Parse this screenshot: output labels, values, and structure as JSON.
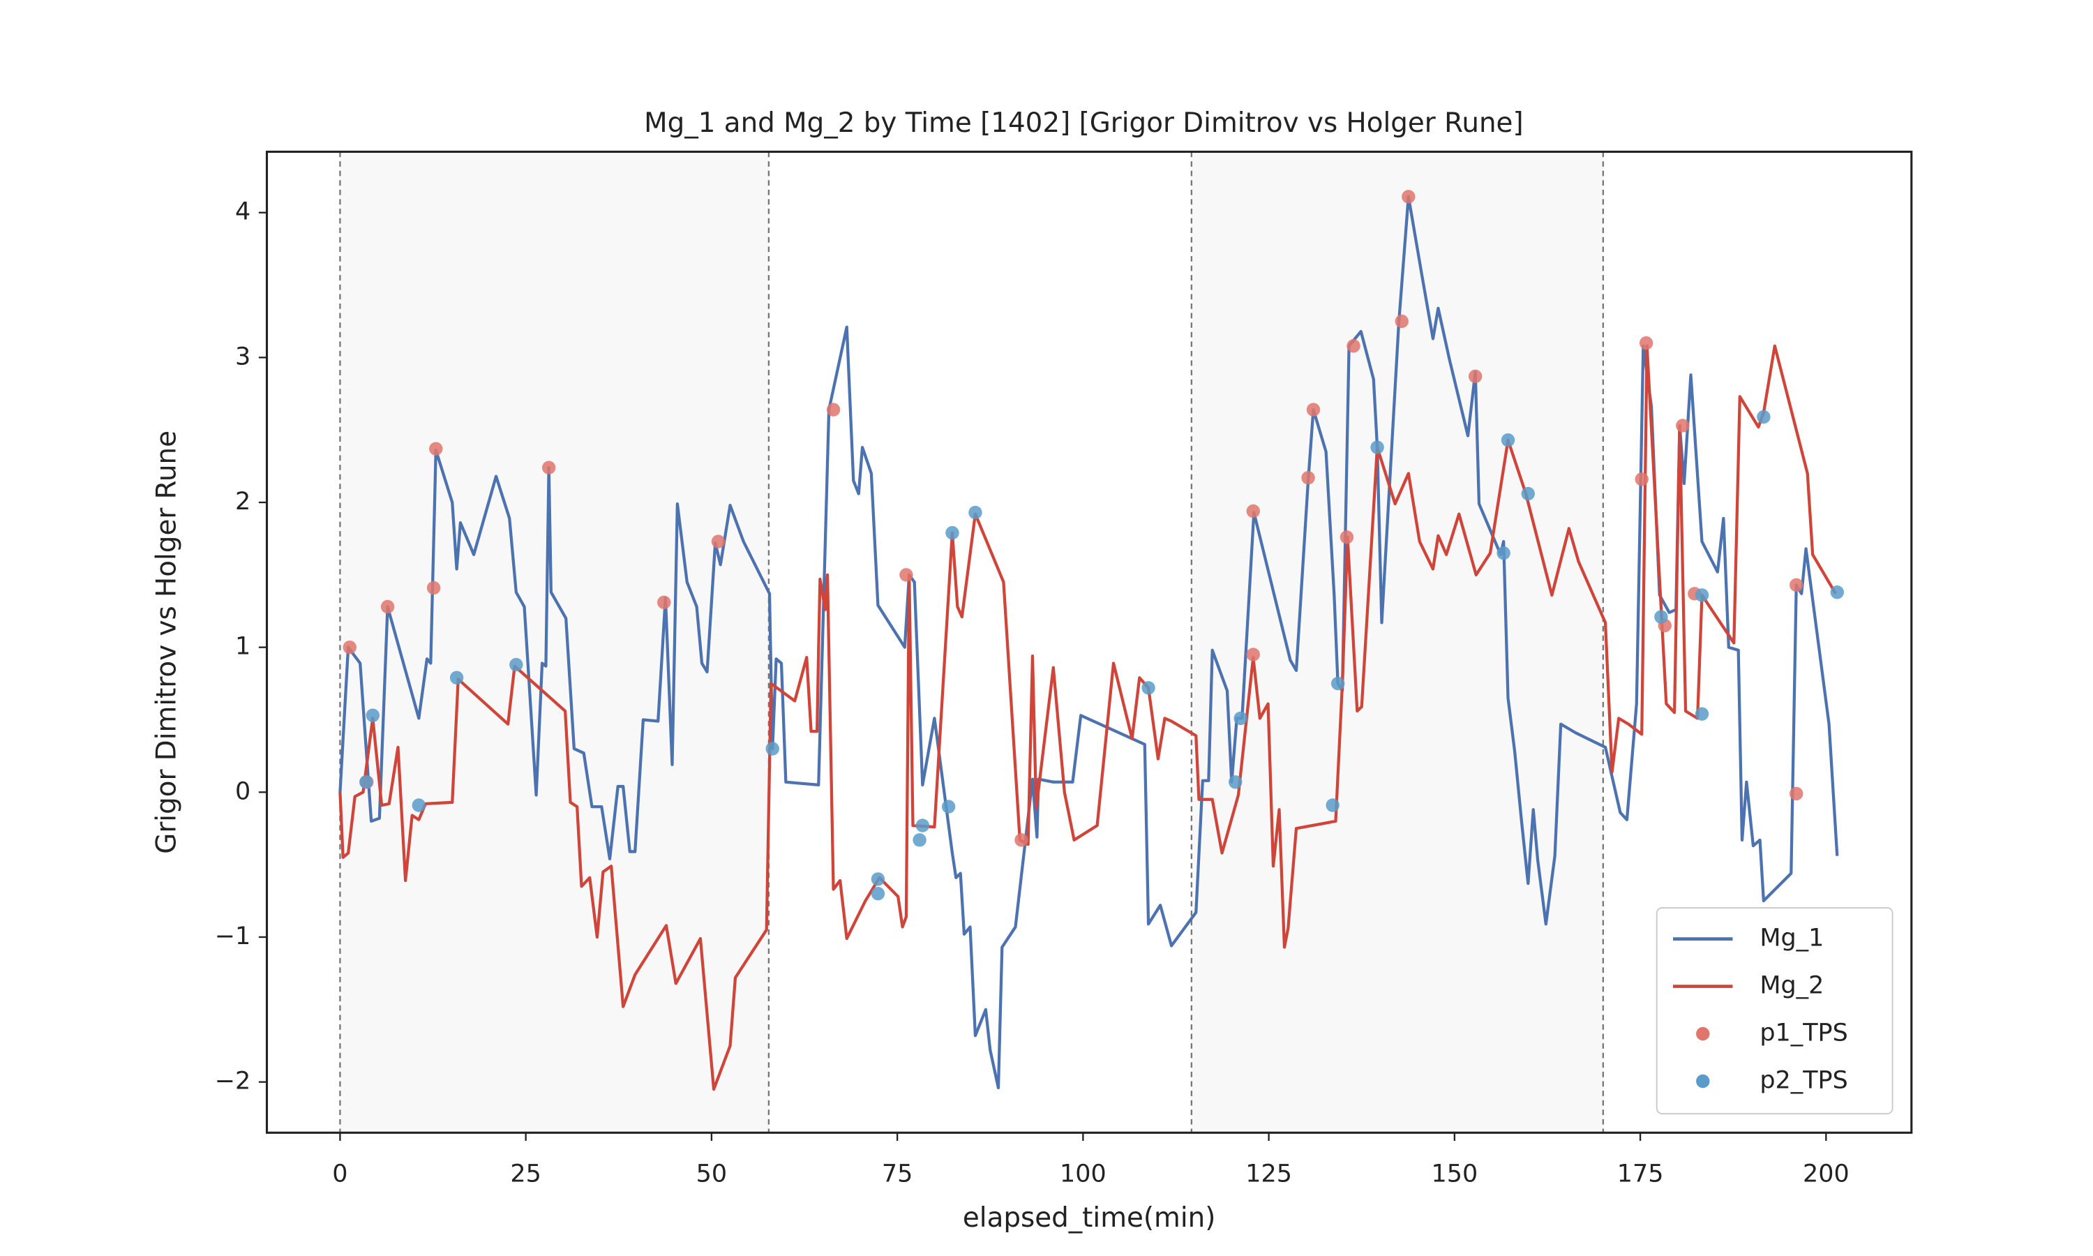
{
  "chart_data": {
    "type": "line",
    "title": "Mg_1 and Mg_2 by Time [1402] [Grigor Dimitrov vs Holger Rune]",
    "x_label": "elapsed_time(min)",
    "y_label": "Grigor Dimitrov vs Holger Rune",
    "xlim": [
      -9.85,
      211.5
    ],
    "ylim": [
      -2.35,
      4.42
    ],
    "xticks": [
      0,
      25,
      50,
      75,
      100,
      125,
      150,
      175,
      200
    ],
    "yticks": [
      {
        "value": -2,
        "label": "−2"
      },
      {
        "value": -1,
        "label": "−1"
      },
      0,
      1,
      2,
      3,
      4
    ],
    "vlines": [
      0,
      57.7,
      114.6,
      170
    ],
    "shaded_spans": [
      [
        0,
        57.7
      ],
      [
        114.6,
        170
      ]
    ],
    "legend": "lower right",
    "series": [
      {
        "name": "Mg_1",
        "type": "line",
        "color": "#4c72b0",
        "x": [
          0,
          1.1,
          2.7,
          4.2,
          5.3,
          6.4,
          10.6,
          11.7,
          12.2,
          12.9,
          15.1,
          15.7,
          16.2,
          18.0,
          21.0,
          22.8,
          23.7,
          24.8,
          26.4,
          27.2,
          27.7,
          28.1,
          28.4,
          30.4,
          31.5,
          32.8,
          33.9,
          35.2,
          36.3,
          37.4,
          38.1,
          39.0,
          39.7,
          40.8,
          42.8,
          43.8,
          44.7,
          45.4,
          46.7,
          48.0,
          48.7,
          49.4,
          50.5,
          51.2,
          52.5,
          54.3,
          57.8,
          58.2,
          58.7,
          59.4,
          60.0,
          64.4,
          65.8,
          68.2,
          69.1,
          69.8,
          70.3,
          71.5,
          72.4,
          76.0,
          76.6,
          77.3,
          78.4,
          80.0,
          82.4,
          82.9,
          83.5,
          84.0,
          84.8,
          85.5,
          86.9,
          87.5,
          88.6,
          89.1,
          90.9,
          92.3,
          93.2,
          93.8,
          94.0,
          96.0,
          98.6,
          99.7,
          108.3,
          108.8,
          110.4,
          111.9,
          115.2,
          116.1,
          116.9,
          117.4,
          119.4,
          120.0,
          120.7,
          121.4,
          123.0,
          127.9,
          128.7,
          130.3,
          131.0,
          132.7,
          133.8,
          134.3,
          134.9,
          135.8,
          137.4,
          139.1,
          139.6,
          140.2,
          142.5,
          143.8,
          145.6,
          147.1,
          147.8,
          149.3,
          151.8,
          152.8,
          153.3,
          156.2,
          156.6,
          157.2,
          158.1,
          159.0,
          159.9,
          160.6,
          161.2,
          162.3,
          163.5,
          164.3,
          166.3,
          170.3,
          172.3,
          173.2,
          174.5,
          175.4,
          176.5,
          177.6,
          178.9,
          179.8,
          180.3,
          180.9,
          181.8,
          183.3,
          185.4,
          186.2,
          186.9,
          188.2,
          188.7,
          189.3,
          190.2,
          191.1,
          191.6,
          195.3,
          196.0,
          196.7,
          197.3,
          200.4,
          201.5
        ],
        "values": [
          0,
          1.0,
          0.89,
          -0.2,
          -0.18,
          1.28,
          0.51,
          0.92,
          0.89,
          2.36,
          2.0,
          1.54,
          1.86,
          1.64,
          2.18,
          1.89,
          1.38,
          1.28,
          -0.02,
          0.89,
          0.87,
          2.24,
          1.38,
          1.2,
          0.3,
          0.27,
          -0.1,
          -0.1,
          -0.46,
          0.04,
          0.04,
          -0.41,
          -0.41,
          0.5,
          0.49,
          1.34,
          0.19,
          1.99,
          1.45,
          1.28,
          0.89,
          0.83,
          1.72,
          1.57,
          1.98,
          1.73,
          1.37,
          0.3,
          0.92,
          0.89,
          0.07,
          0.05,
          2.64,
          3.21,
          2.15,
          2.06,
          2.38,
          2.2,
          1.29,
          1.0,
          1.5,
          1.45,
          0.05,
          0.51,
          -0.42,
          -0.59,
          -0.56,
          -0.98,
          -0.93,
          -1.68,
          -1.5,
          -1.78,
          -2.04,
          -1.07,
          -0.93,
          -0.31,
          0.09,
          -0.31,
          0.09,
          0.07,
          0.07,
          0.53,
          0.33,
          -0.91,
          -0.78,
          -1.06,
          -0.83,
          0.08,
          0.08,
          0.98,
          0.7,
          0.07,
          0.51,
          0.51,
          1.93,
          0.91,
          0.84,
          2.15,
          2.64,
          2.35,
          1.36,
          0.75,
          0.7,
          3.08,
          3.18,
          2.85,
          2.38,
          1.17,
          3.24,
          4.11,
          3.57,
          3.13,
          3.34,
          2.99,
          2.46,
          2.9,
          1.99,
          1.64,
          1.73,
          0.65,
          0.28,
          -0.19,
          -0.63,
          -0.12,
          -0.47,
          -0.91,
          -0.44,
          0.47,
          0.41,
          0.31,
          -0.14,
          -0.19,
          0.61,
          3.08,
          2.66,
          1.36,
          1.24,
          1.26,
          2.53,
          2.13,
          2.88,
          1.73,
          1.52,
          1.89,
          1.0,
          0.98,
          -0.33,
          0.07,
          -0.37,
          -0.33,
          -0.75,
          -0.56,
          1.43,
          1.37,
          1.68,
          0.47,
          -0.44
        ]
      },
      {
        "name": "Mg_2",
        "type": "line",
        "color": "#d0453a",
        "x": [
          0,
          0.4,
          1.1,
          2.0,
          3.1,
          4.4,
          5.6,
          6.6,
          7.8,
          8.8,
          9.7,
          10.6,
          11.5,
          15.1,
          15.9,
          22.6,
          23.5,
          30.3,
          31.0,
          31.9,
          32.5,
          33.6,
          34.6,
          35.4,
          36.5,
          38.1,
          39.7,
          43.9,
          45.2,
          48.5,
          50.3,
          52.5,
          53.2,
          57.4,
          58.0,
          61.2,
          62.8,
          63.4,
          64.2,
          64.4,
          64.6,
          65.3,
          65.6,
          66.4,
          67.3,
          68.2,
          70.7,
          72.6,
          75.1,
          75.7,
          76.2,
          76.6,
          77.1,
          80.0,
          82.4,
          83.1,
          83.7,
          85.5,
          89.3,
          91.5,
          92.6,
          93.2,
          93.7,
          96.0,
          97.5,
          98.8,
          101.9,
          104.1,
          106.6,
          107.6,
          108.8,
          110.1,
          111.0,
          111.9,
          115.2,
          115.6,
          117.4,
          118.7,
          120.9,
          122.9,
          123.8,
          124.9,
          125.6,
          126.4,
          127.1,
          127.6,
          128.7,
          134.0,
          134.9,
          135.6,
          136.9,
          137.5,
          139.6,
          142.0,
          143.8,
          145.3,
          147.1,
          147.8,
          148.9,
          150.6,
          152.9,
          154.8,
          157.2,
          159.6,
          163.1,
          165.4,
          166.7,
          170.3,
          171.2,
          172.1,
          173.4,
          175.2,
          175.9,
          178.5,
          179.6,
          180.3,
          181.1,
          182.7,
          183.3,
          187.6,
          188.4,
          190.9,
          191.6,
          193.1,
          197.5,
          198.2,
          201.3
        ],
        "values": [
          0,
          -0.45,
          -0.42,
          -0.03,
          0,
          0.51,
          -0.09,
          -0.08,
          0.31,
          -0.61,
          -0.16,
          -0.19,
          -0.08,
          -0.07,
          0.78,
          0.47,
          0.87,
          0.56,
          -0.07,
          -0.1,
          -0.65,
          -0.59,
          -1.0,
          -0.55,
          -0.51,
          -1.48,
          -1.26,
          -0.92,
          -1.32,
          -1.01,
          -2.05,
          -1.75,
          -1.28,
          -0.95,
          0.75,
          0.63,
          0.93,
          0.42,
          0.42,
          0.98,
          1.47,
          1.26,
          1.5,
          -0.67,
          -0.61,
          -1.01,
          -0.75,
          -0.59,
          -0.72,
          -0.93,
          -0.86,
          1.5,
          -0.23,
          -0.24,
          1.79,
          1.28,
          1.21,
          1.92,
          1.45,
          -0.33,
          -0.36,
          0.94,
          -0.11,
          0.86,
          0,
          -0.33,
          -0.23,
          0.89,
          0.37,
          0.79,
          0.72,
          0.23,
          0.51,
          0.49,
          0.39,
          -0.05,
          -0.05,
          -0.42,
          -0.02,
          0.93,
          0.51,
          0.61,
          -0.51,
          -0.12,
          -1.07,
          -0.94,
          -0.25,
          -0.2,
          0.75,
          1.76,
          0.56,
          0.59,
          2.38,
          1.99,
          2.2,
          1.73,
          1.54,
          1.77,
          1.64,
          1.92,
          1.5,
          1.65,
          2.43,
          2.06,
          1.36,
          1.82,
          1.59,
          1.17,
          0.14,
          0.51,
          0.47,
          0.4,
          3.08,
          0.61,
          0.55,
          2.53,
          0.56,
          0.51,
          1.36,
          1.03,
          2.73,
          2.52,
          2.62,
          3.08,
          2.2,
          1.64,
          1.37
        ]
      },
      {
        "name": "p1_TPS",
        "type": "scatter",
        "color": "#e0756c",
        "x": [
          1.3,
          3.6,
          6.4,
          12.6,
          12.9,
          28.1,
          43.6,
          50.9,
          66.4,
          76.2,
          91.7,
          122.9,
          122.9,
          130.3,
          131.0,
          135.5,
          136.4,
          142.9,
          143.8,
          152.8,
          175.2,
          175.8,
          178.3,
          180.7,
          182.3,
          196.0,
          196.0
        ],
        "values": [
          1.0,
          0.07,
          1.28,
          1.41,
          2.37,
          2.24,
          1.31,
          1.73,
          2.64,
          1.5,
          -0.33,
          1.94,
          0.95,
          2.17,
          2.64,
          1.76,
          3.08,
          3.25,
          4.11,
          2.87,
          2.16,
          3.1,
          1.15,
          2.53,
          1.37,
          1.43,
          -0.01
        ]
      },
      {
        "name": "p2_TPS",
        "type": "scatter",
        "color": "#5b9bc9",
        "x": [
          3.5,
          4.4,
          10.6,
          15.7,
          23.7,
          58.2,
          72.4,
          72.4,
          78.0,
          78.4,
          81.9,
          82.4,
          85.5,
          108.8,
          120.5,
          121.2,
          133.6,
          134.3,
          139.6,
          156.6,
          157.2,
          159.9,
          177.8,
          183.3,
          183.3,
          191.6,
          201.5
        ],
        "values": [
          0.07,
          0.53,
          -0.09,
          0.79,
          0.88,
          0.3,
          -0.7,
          -0.6,
          -0.33,
          -0.23,
          -0.1,
          1.79,
          1.93,
          0.72,
          0.07,
          0.51,
          -0.09,
          0.75,
          2.38,
          1.65,
          2.43,
          2.06,
          1.21,
          1.36,
          0.54,
          2.59,
          1.38
        ]
      }
    ]
  }
}
